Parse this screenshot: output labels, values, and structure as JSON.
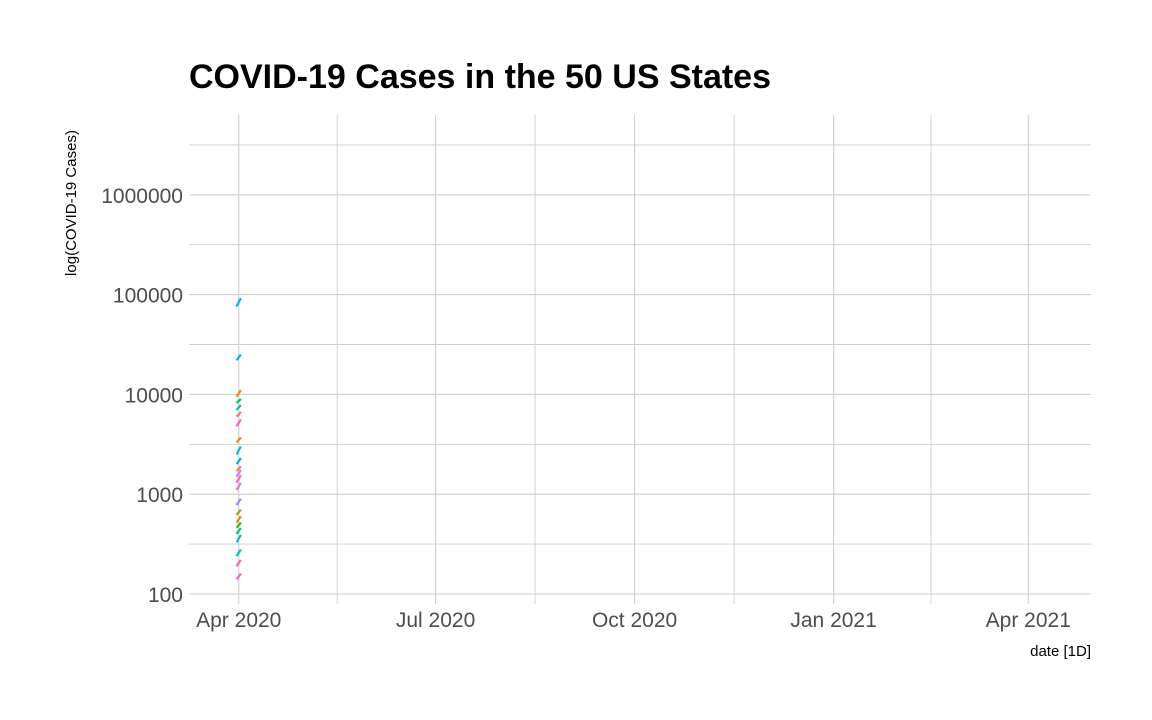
{
  "chart_data": {
    "type": "line",
    "title": "COVID-19 Cases in the 50 US States",
    "xlabel": "date [1D]",
    "ylabel": "log(COVID-19 Cases)",
    "y_scale": "log",
    "ylim": [
      100,
      4000000
    ],
    "xlim": [
      "2020-03-09",
      "2021-04-30"
    ],
    "x_ticks": [
      {
        "date": "2020-04-01",
        "label": "Apr 2020"
      },
      {
        "date": "2020-07-01",
        "label": "Jul 2020"
      },
      {
        "date": "2020-10-01",
        "label": "Oct 2020"
      },
      {
        "date": "2021-01-01",
        "label": "Jan 2021"
      },
      {
        "date": "2021-04-01",
        "label": "Apr 2021"
      }
    ],
    "y_ticks": [
      {
        "value": 100,
        "label": "100"
      },
      {
        "value": 1000,
        "label": "1000"
      },
      {
        "value": 10000,
        "label": "10000"
      },
      {
        "value": 100000,
        "label": "100000"
      },
      {
        "value": 1000000,
        "label": "1000000"
      }
    ],
    "grid": true,
    "legend": "none",
    "x": [
      "2020-03-31",
      "2020-04-01",
      "2020-04-02"
    ],
    "series": [
      {
        "color": "#00b0f6",
        "values": [
          76000,
          84000,
          92000
        ]
      },
      {
        "color": "#00b0f6",
        "values": [
          22000,
          23500,
          25000
        ]
      },
      {
        "color": "#e7861b",
        "values": [
          9500,
          10200,
          11000
        ]
      },
      {
        "color": "#00be67",
        "values": [
          8200,
          8600,
          9000
        ]
      },
      {
        "color": "#00c08b",
        "values": [
          7000,
          7400,
          7800
        ]
      },
      {
        "color": "#f8766d",
        "values": [
          6000,
          6300,
          6700
        ]
      },
      {
        "color": "#ff61c3",
        "values": [
          4800,
          5200,
          5600
        ]
      },
      {
        "color": "#d89000",
        "values": [
          3300,
          3500,
          3700
        ]
      },
      {
        "color": "#00bfc4",
        "values": [
          2500,
          2750,
          3000
        ]
      },
      {
        "color": "#00a9ff",
        "values": [
          2000,
          2150,
          2300
        ]
      },
      {
        "color": "#f8766d",
        "values": [
          1700,
          1800,
          1900
        ]
      },
      {
        "color": "#c77cff",
        "values": [
          1500,
          1620,
          1750
        ]
      },
      {
        "color": "#ff61c3",
        "values": [
          1300,
          1420,
          1550
        ]
      },
      {
        "color": "#e76bf3",
        "values": [
          1100,
          1200,
          1300
        ]
      },
      {
        "color": "#9590ff",
        "values": [
          780,
          840,
          900
        ]
      },
      {
        "color": "#a3a500",
        "values": [
          620,
          660,
          700
        ]
      },
      {
        "color": "#e7861b",
        "values": [
          520,
          560,
          600
        ]
      },
      {
        "color": "#39b600",
        "values": [
          460,
          490,
          520
        ]
      },
      {
        "color": "#00bf7d",
        "values": [
          400,
          430,
          460
        ]
      },
      {
        "color": "#00bcd8",
        "values": [
          330,
          360,
          390
        ]
      },
      {
        "color": "#00bfc4",
        "values": [
          240,
          260,
          280
        ]
      },
      {
        "color": "#ff62bc",
        "values": [
          190,
          205,
          220
        ]
      },
      {
        "color": "#ff61c3",
        "values": [
          140,
          150,
          160
        ]
      }
    ]
  }
}
